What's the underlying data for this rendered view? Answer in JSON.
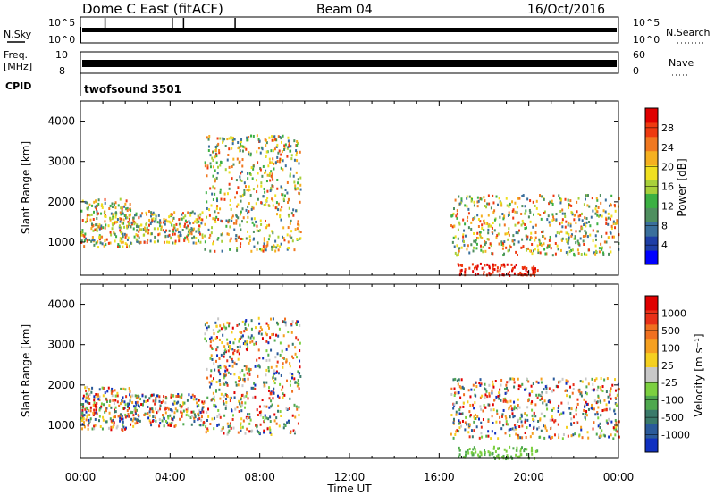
{
  "header": {
    "title": "Dome C East (fitACF)",
    "beam": "Beam 04",
    "date": "16/Oct/2016"
  },
  "noise_panel": {
    "left_label": "N.Sky",
    "left_ticks": [
      "10^5",
      "10^0"
    ],
    "right_ticks": [
      "10^5",
      "10^0"
    ],
    "right_label": "N.Search"
  },
  "freq_panel": {
    "left_label_1": "Freq.",
    "left_label_2": "[MHz]",
    "left_ticks": [
      "10",
      "8"
    ],
    "right_ticks": [
      "60",
      "0"
    ],
    "right_label": "Nave"
  },
  "cpid": {
    "label": "CPID",
    "value": "twofsound 3501"
  },
  "chart_data": [
    {
      "type": "heatmap",
      "name": "power",
      "ylabel": "Slant Range [km]",
      "ylim": [
        180,
        4500
      ],
      "xlim": [
        "00:00",
        "24:00"
      ],
      "y_ticks": [
        "1000",
        "2000",
        "3000",
        "4000"
      ],
      "colorbar": {
        "label": "Power [dB]",
        "ticks": [
          "4",
          "8",
          "12",
          "16",
          "20",
          "24",
          "28"
        ],
        "colors": [
          "#0000ff",
          "#1e3ea6",
          "#3a6f9c",
          "#4f8f5f",
          "#3cb043",
          "#a8d03a",
          "#f0e020",
          "#f5b020",
          "#f07820",
          "#ee3a10",
          "#e00000"
        ]
      },
      "echo_regions": [
        {
          "t_start": 0.0,
          "t_end": 2.2,
          "range_min": 900,
          "range_max": 2100
        },
        {
          "t_start": 2.2,
          "t_end": 5.5,
          "range_min": 1000,
          "range_max": 1800
        },
        {
          "t_start": 5.5,
          "t_end": 9.8,
          "range_min": 800,
          "range_max": 3700
        },
        {
          "t_start": 16.5,
          "t_end": 24.0,
          "range_min": 700,
          "range_max": 2200
        },
        {
          "t_start": 16.8,
          "t_end": 20.4,
          "range_min": 200,
          "range_max": 500
        }
      ]
    },
    {
      "type": "heatmap",
      "name": "velocity",
      "ylabel": "Slant Range [km]",
      "ylim": [
        180,
        4500
      ],
      "xlim": [
        "00:00",
        "24:00"
      ],
      "y_ticks": [
        "1000",
        "2000",
        "3000",
        "4000"
      ],
      "colorbar": {
        "label": "Velocity [m s⁻¹]",
        "ticks": [
          "1000",
          "500",
          "100",
          "25",
          "-25",
          "-100",
          "-500",
          "-1000"
        ],
        "colors": [
          "#1030c0",
          "#2a5a9a",
          "#3a7a6a",
          "#4fa84f",
          "#7cd040",
          "#c8c8c8",
          "#f5d020",
          "#f5a020",
          "#f07020",
          "#e83018",
          "#e00000"
        ]
      },
      "echo_regions": [
        {
          "t_start": 0.0,
          "t_end": 2.2,
          "range_min": 900,
          "range_max": 2000
        },
        {
          "t_start": 2.2,
          "t_end": 5.5,
          "range_min": 1000,
          "range_max": 1800
        },
        {
          "t_start": 5.5,
          "t_end": 9.8,
          "range_min": 800,
          "range_max": 3700
        },
        {
          "t_start": 16.5,
          "t_end": 24.0,
          "range_min": 700,
          "range_max": 2200
        },
        {
          "t_start": 16.8,
          "t_end": 20.4,
          "range_min": 200,
          "range_max": 500
        }
      ]
    }
  ],
  "x_axis": {
    "ticks": [
      "00:00",
      "04:00",
      "08:00",
      "12:00",
      "16:00",
      "20:00",
      "00:00"
    ],
    "label": "Time UT"
  }
}
